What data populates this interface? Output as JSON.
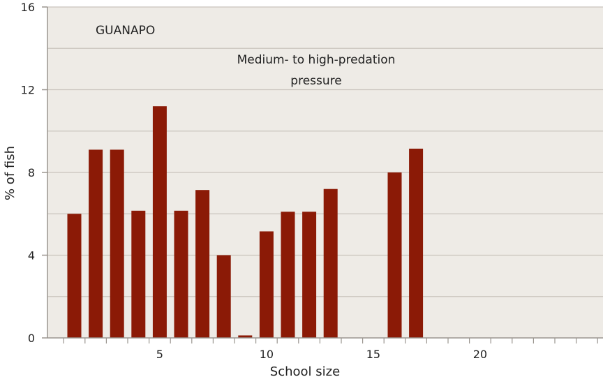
{
  "chart_data": {
    "type": "bar",
    "x": [
      1,
      2,
      3,
      4,
      5,
      6,
      7,
      8,
      9,
      10,
      11,
      12,
      13,
      14,
      15,
      16,
      17,
      18,
      19,
      20,
      21,
      22,
      23,
      24,
      25
    ],
    "values": [
      6.0,
      9.1,
      9.1,
      6.15,
      11.2,
      6.15,
      7.15,
      4.0,
      0.12,
      5.15,
      6.1,
      6.1,
      7.2,
      0,
      0,
      8.0,
      9.15,
      0,
      0,
      0,
      0,
      0,
      0,
      0,
      0
    ],
    "xlabel": "School size",
    "ylabel": "% of fish",
    "ylim": [
      0,
      16
    ],
    "yticks": [
      0,
      4,
      8,
      12,
      16
    ],
    "xtick_labels": [
      5,
      10,
      15,
      20
    ],
    "grid": true,
    "annotations": [
      "GUANAPO",
      "Medium- to high-predation",
      "pressure"
    ],
    "colors": {
      "bar": "#8b1a06",
      "background": "#eeebe6",
      "grid": "#c9c4bd"
    }
  }
}
